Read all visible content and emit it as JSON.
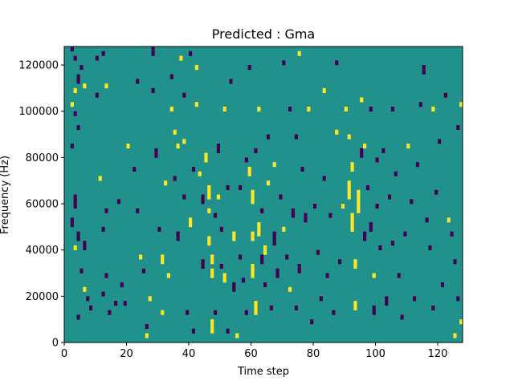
{
  "chart_data": {
    "type": "heatmap",
    "title": "Predicted : Gma",
    "xlabel": "Time step",
    "ylabel": "Frequency (Hz)",
    "xlim": [
      0,
      128
    ],
    "ylim": [
      0,
      128000
    ],
    "x_ticks": [
      0,
      20,
      40,
      60,
      80,
      100,
      120
    ],
    "y_ticks": [
      0,
      20000,
      40000,
      60000,
      80000,
      100000,
      120000
    ],
    "value_levels": [
      -1,
      0,
      1
    ],
    "colors": {
      "low": "#440154",
      "mid": "#21918c",
      "high": "#fde725"
    },
    "grid": false,
    "background_value": 0,
    "description_note": "",
    "bin_height_hz": 2000,
    "cells": [
      [
        2,
        126000,
        2000,
        -1
      ],
      [
        3,
        122000,
        2000,
        -1
      ],
      [
        5,
        118000,
        2000,
        -1
      ],
      [
        4,
        112000,
        4000,
        -1
      ],
      [
        6,
        110000,
        2000,
        1
      ],
      [
        3,
        108000,
        2000,
        1
      ],
      [
        2,
        102000,
        2000,
        1
      ],
      [
        3,
        98000,
        2000,
        -1
      ],
      [
        4,
        92000,
        2000,
        -1
      ],
      [
        2,
        84000,
        2000,
        -1
      ],
      [
        3,
        62000,
        2000,
        -1
      ],
      [
        3,
        58000,
        4000,
        -1
      ],
      [
        2,
        50000,
        4000,
        -1
      ],
      [
        4,
        44000,
        4000,
        -1
      ],
      [
        6,
        40000,
        4000,
        -1
      ],
      [
        3,
        40000,
        2000,
        1
      ],
      [
        5,
        30000,
        2000,
        -1
      ],
      [
        6,
        22000,
        2000,
        1
      ],
      [
        7,
        18000,
        2000,
        -1
      ],
      [
        8,
        14000,
        2000,
        -1
      ],
      [
        4,
        10000,
        2000,
        -1
      ],
      [
        10,
        122000,
        2000,
        -1
      ],
      [
        12,
        124000,
        2000,
        -1
      ],
      [
        13,
        110000,
        2000,
        1
      ],
      [
        10,
        106000,
        2000,
        -1
      ],
      [
        11,
        70000,
        2000,
        1
      ],
      [
        13,
        56000,
        2000,
        -1
      ],
      [
        12,
        48000,
        2000,
        -1
      ],
      [
        13,
        28000,
        2000,
        -1
      ],
      [
        12,
        20000,
        2000,
        -1
      ],
      [
        14,
        12000,
        2000,
        -1
      ],
      [
        16,
        16000,
        2000,
        -1
      ],
      [
        17,
        60000,
        2000,
        -1
      ],
      [
        18,
        24000,
        2000,
        -1
      ],
      [
        19,
        16000,
        2000,
        -1
      ],
      [
        20,
        84000,
        2000,
        1
      ],
      [
        22,
        74000,
        2000,
        -1
      ],
      [
        23,
        112000,
        2000,
        -1
      ],
      [
        23,
        56000,
        2000,
        -1
      ],
      [
        24,
        36000,
        2000,
        1
      ],
      [
        25,
        30000,
        2000,
        -1
      ],
      [
        26,
        6000,
        2000,
        -1
      ],
      [
        26,
        2000,
        2000,
        1
      ],
      [
        27,
        18000,
        2000,
        1
      ],
      [
        28,
        124000,
        4000,
        -1
      ],
      [
        28,
        108000,
        2000,
        -1
      ],
      [
        29,
        80000,
        4000,
        -1
      ],
      [
        30,
        48000,
        2000,
        -1
      ],
      [
        31,
        34000,
        4000,
        1
      ],
      [
        31,
        12000,
        2000,
        1
      ],
      [
        32,
        68000,
        2000,
        1
      ],
      [
        33,
        28000,
        2000,
        1
      ],
      [
        34,
        114000,
        2000,
        -1
      ],
      [
        34,
        100000,
        2000,
        1
      ],
      [
        35,
        90000,
        2000,
        1
      ],
      [
        35,
        70000,
        2000,
        -1
      ],
      [
        36,
        84000,
        2000,
        1
      ],
      [
        36,
        44000,
        4000,
        -1
      ],
      [
        37,
        122000,
        2000,
        1
      ],
      [
        38,
        106000,
        2000,
        -1
      ],
      [
        38,
        86000,
        2000,
        1
      ],
      [
        38,
        62000,
        2000,
        -1
      ],
      [
        39,
        12000,
        2000,
        -1
      ],
      [
        40,
        124000,
        2000,
        -1
      ],
      [
        40,
        50000,
        4000,
        1
      ],
      [
        41,
        4000,
        2000,
        -1
      ],
      [
        41,
        74000,
        2000,
        -1
      ],
      [
        42,
        118000,
        2000,
        1
      ],
      [
        42,
        102000,
        2000,
        1
      ],
      [
        43,
        72000,
        2000,
        1
      ],
      [
        44,
        60000,
        4000,
        -1
      ],
      [
        44,
        32000,
        4000,
        -1
      ],
      [
        45,
        78000,
        4000,
        1
      ],
      [
        46,
        62000,
        6000,
        1
      ],
      [
        46,
        56000,
        2000,
        1
      ],
      [
        46,
        42000,
        4000,
        1
      ],
      [
        47,
        34000,
        4000,
        1
      ],
      [
        47,
        28000,
        4000,
        1
      ],
      [
        47,
        4000,
        6000,
        1
      ],
      [
        48,
        12000,
        2000,
        -1
      ],
      [
        48,
        54000,
        2000,
        -1
      ],
      [
        49,
        82000,
        4000,
        -1
      ],
      [
        49,
        62000,
        2000,
        1
      ],
      [
        50,
        48000,
        2000,
        -1
      ],
      [
        50,
        32000,
        2000,
        -1
      ],
      [
        51,
        26000,
        4000,
        1
      ],
      [
        51,
        100000,
        2000,
        1
      ],
      [
        52,
        66000,
        2000,
        -1
      ],
      [
        52,
        4000,
        2000,
        -1
      ],
      [
        53,
        112000,
        2000,
        -1
      ],
      [
        54,
        44000,
        4000,
        1
      ],
      [
        54,
        22000,
        4000,
        -1
      ],
      [
        55,
        2000,
        2000,
        1
      ],
      [
        56,
        66000,
        2000,
        -1
      ],
      [
        56,
        36000,
        2000,
        -1
      ],
      [
        57,
        26000,
        2000,
        -1
      ],
      [
        58,
        78000,
        2000,
        -1
      ],
      [
        58,
        12000,
        2000,
        -1
      ],
      [
        59,
        118000,
        2000,
        -1
      ],
      [
        59,
        72000,
        4000,
        1
      ],
      [
        60,
        60000,
        6000,
        1
      ],
      [
        60,
        44000,
        4000,
        1
      ],
      [
        60,
        28000,
        6000,
        1
      ],
      [
        61,
        12000,
        6000,
        1
      ],
      [
        61,
        82000,
        2000,
        -1
      ],
      [
        62,
        100000,
        2000,
        1
      ],
      [
        62,
        46000,
        6000,
        1
      ],
      [
        63,
        34000,
        4000,
        -1
      ],
      [
        63,
        56000,
        2000,
        -1
      ],
      [
        64,
        38000,
        4000,
        1
      ],
      [
        64,
        24000,
        2000,
        -1
      ],
      [
        65,
        68000,
        2000,
        1
      ],
      [
        65,
        88000,
        2000,
        -1
      ],
      [
        66,
        14000,
        2000,
        -1
      ],
      [
        67,
        42000,
        6000,
        -1
      ],
      [
        67,
        76000,
        2000,
        1
      ],
      [
        68,
        28000,
        4000,
        -1
      ],
      [
        69,
        62000,
        2000,
        -1
      ],
      [
        70,
        120000,
        2000,
        -1
      ],
      [
        70,
        48000,
        2000,
        1
      ],
      [
        71,
        36000,
        2000,
        -1
      ],
      [
        72,
        100000,
        2000,
        -1
      ],
      [
        72,
        22000,
        2000,
        1
      ],
      [
        73,
        54000,
        4000,
        -1
      ],
      [
        74,
        88000,
        2000,
        -1
      ],
      [
        74,
        14000,
        2000,
        -1
      ],
      [
        75,
        124000,
        2000,
        1
      ],
      [
        75,
        30000,
        4000,
        -1
      ],
      [
        76,
        74000,
        2000,
        -1
      ],
      [
        77,
        52000,
        4000,
        -1
      ],
      [
        78,
        100000,
        2000,
        1
      ],
      [
        79,
        8000,
        2000,
        -1
      ],
      [
        80,
        58000,
        2000,
        -1
      ],
      [
        81,
        38000,
        2000,
        -1
      ],
      [
        82,
        18000,
        2000,
        -1
      ],
      [
        83,
        70000,
        2000,
        -1
      ],
      [
        83,
        108000,
        2000,
        1
      ],
      [
        84,
        28000,
        2000,
        -1
      ],
      [
        85,
        54000,
        2000,
        -1
      ],
      [
        86,
        12000,
        2000,
        -1
      ],
      [
        87,
        120000,
        2000,
        -1
      ],
      [
        87,
        90000,
        2000,
        1
      ],
      [
        88,
        34000,
        2000,
        -1
      ],
      [
        89,
        58000,
        2000,
        1
      ],
      [
        90,
        100000,
        2000,
        1
      ],
      [
        91,
        62000,
        8000,
        1
      ],
      [
        91,
        88000,
        2000,
        1
      ],
      [
        92,
        48000,
        8000,
        1
      ],
      [
        92,
        74000,
        4000,
        1
      ],
      [
        93,
        14000,
        4000,
        1
      ],
      [
        93,
        32000,
        4000,
        1
      ],
      [
        94,
        56000,
        10000,
        1
      ],
      [
        95,
        80000,
        4000,
        -1
      ],
      [
        95,
        104000,
        2000,
        1
      ],
      [
        96,
        44000,
        4000,
        -1
      ],
      [
        96,
        84000,
        2000,
        1
      ],
      [
        97,
        66000,
        2000,
        -1
      ],
      [
        98,
        100000,
        2000,
        -1
      ],
      [
        98,
        48000,
        4000,
        -1
      ],
      [
        99,
        12000,
        4000,
        -1
      ],
      [
        99,
        28000,
        2000,
        1
      ],
      [
        100,
        78000,
        2000,
        -1
      ],
      [
        100,
        58000,
        2000,
        -1
      ],
      [
        101,
        40000,
        2000,
        -1
      ],
      [
        102,
        82000,
        2000,
        -1
      ],
      [
        103,
        16000,
        4000,
        -1
      ],
      [
        104,
        62000,
        2000,
        -1
      ],
      [
        105,
        42000,
        2000,
        -1
      ],
      [
        105,
        100000,
        2000,
        -1
      ],
      [
        106,
        72000,
        2000,
        -1
      ],
      [
        107,
        28000,
        2000,
        -1
      ],
      [
        108,
        10000,
        2000,
        -1
      ],
      [
        109,
        46000,
        2000,
        -1
      ],
      [
        110,
        84000,
        2000,
        1
      ],
      [
        111,
        60000,
        2000,
        -1
      ],
      [
        112,
        18000,
        2000,
        -1
      ],
      [
        113,
        76000,
        2000,
        -1
      ],
      [
        114,
        102000,
        2000,
        -1
      ],
      [
        115,
        116000,
        4000,
        -1
      ],
      [
        116,
        52000,
        2000,
        -1
      ],
      [
        117,
        40000,
        2000,
        -1
      ],
      [
        118,
        100000,
        2000,
        1
      ],
      [
        118,
        14000,
        2000,
        -1
      ],
      [
        119,
        64000,
        2000,
        -1
      ],
      [
        120,
        86000,
        2000,
        -1
      ],
      [
        121,
        24000,
        2000,
        -1
      ],
      [
        122,
        106000,
        2000,
        -1
      ],
      [
        123,
        52000,
        2000,
        1
      ],
      [
        124,
        46000,
        2000,
        -1
      ],
      [
        125,
        34000,
        2000,
        -1
      ],
      [
        125,
        2000,
        2000,
        1
      ],
      [
        126,
        18000,
        2000,
        -1
      ],
      [
        126,
        92000,
        2000,
        -1
      ],
      [
        127,
        102000,
        2000,
        1
      ],
      [
        127,
        8000,
        2000,
        1
      ]
    ]
  }
}
